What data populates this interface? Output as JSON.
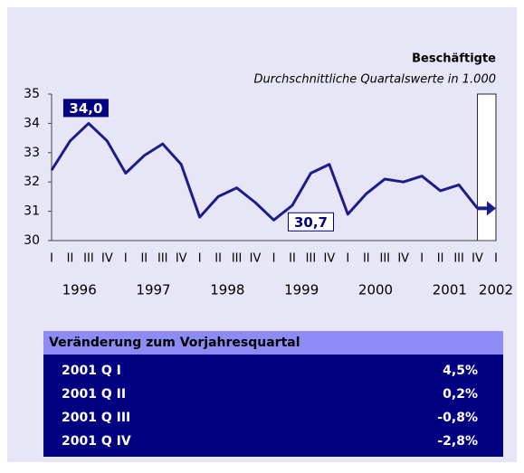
{
  "chart_data": {
    "type": "line",
    "title": "Beschäftigte",
    "subtitle": "Durchschnittliche Quartalswerte in 1.000",
    "categories": [
      "I",
      "II",
      "III",
      "IV",
      "I",
      "II",
      "III",
      "IV",
      "I",
      "II",
      "III",
      "IV",
      "I",
      "II",
      "III",
      "IV",
      "I",
      "II",
      "III",
      "IV",
      "I",
      "II",
      "III",
      "IV",
      "I"
    ],
    "years": [
      "1996",
      "1997",
      "1998",
      "1999",
      "2000",
      "2001",
      "2002"
    ],
    "values": [
      32.4,
      33.4,
      34.0,
      33.4,
      32.3,
      32.9,
      33.3,
      32.6,
      30.8,
      31.5,
      31.8,
      31.3,
      30.7,
      31.2,
      32.3,
      32.6,
      30.9,
      31.6,
      32.1,
      32.0,
      32.2,
      31.7,
      31.9,
      31.1,
      null
    ],
    "value_labels": [
      null,
      null,
      "34,0",
      null,
      null,
      null,
      null,
      null,
      null,
      null,
      null,
      null,
      "30,7",
      null,
      null,
      null,
      null,
      null,
      null,
      null,
      null,
      null,
      null,
      null,
      null
    ],
    "color": "#1c1c8c",
    "ylim": [
      30,
      35
    ],
    "yticks": [
      30,
      31,
      32,
      33,
      34,
      35
    ]
  },
  "table": {
    "title": "Veränderung zum Vorjahresquartal",
    "rows": [
      [
        "2001 Q I",
        "4,5%"
      ],
      [
        "2001 Q II",
        "0,2%"
      ],
      [
        "2001 Q III",
        "-0,8%"
      ],
      [
        "2001 Q IV",
        "-2,8%"
      ]
    ]
  }
}
